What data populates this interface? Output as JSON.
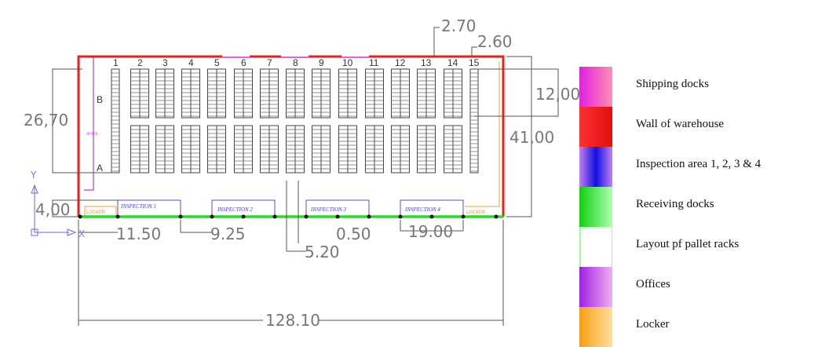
{
  "plan": {
    "rack_numbers": [
      "1",
      "2",
      "3",
      "4",
      "5",
      "6",
      "7",
      "8",
      "9",
      "10",
      "11",
      "12",
      "13",
      "14",
      "15"
    ],
    "row_labels": {
      "b": "B",
      "a": "A"
    },
    "office_label": "OFFICE",
    "locker_label": "LOCKER",
    "inspection_labels": [
      "INSPECTION 1",
      "INSPECTION 2",
      "INSPECTION 3",
      "INSPECTION 4"
    ],
    "axis": {
      "y": "Y",
      "x": "X"
    },
    "dimensions": {
      "d2670": "26,70",
      "d400": "4,00",
      "d4100": "41,00",
      "d1200": "12,00",
      "d270": "2.70",
      "d260": "2.60",
      "d1150": "11.50",
      "d925": "9.25",
      "d050": "0.50",
      "d1900": "19.00",
      "d520": "5.20",
      "d12810": "128.10"
    }
  },
  "colors": {
    "wall": "#e82020",
    "shipping": "#e040e0",
    "receiving": "#22dd22",
    "inspection": "#4040e0",
    "office": "#c040e0",
    "locker": "#f0a040",
    "rack": "#444444"
  },
  "legend": [
    {
      "label": "Shipping docks",
      "color": "#f060c0"
    },
    {
      "label": "Wall of warehouse",
      "color": "#e82020"
    },
    {
      "label": "Inspection area 1, 2, 3 & 4",
      "color": "#1010e0"
    },
    {
      "label": "Receiving docks",
      "color": "#22dd22"
    },
    {
      "label": "Layout pf pallet racks",
      "color": "#ffffff"
    },
    {
      "label": "Offices",
      "color": "#b030e0"
    },
    {
      "label": "Locker",
      "color": "#f5b020"
    }
  ]
}
